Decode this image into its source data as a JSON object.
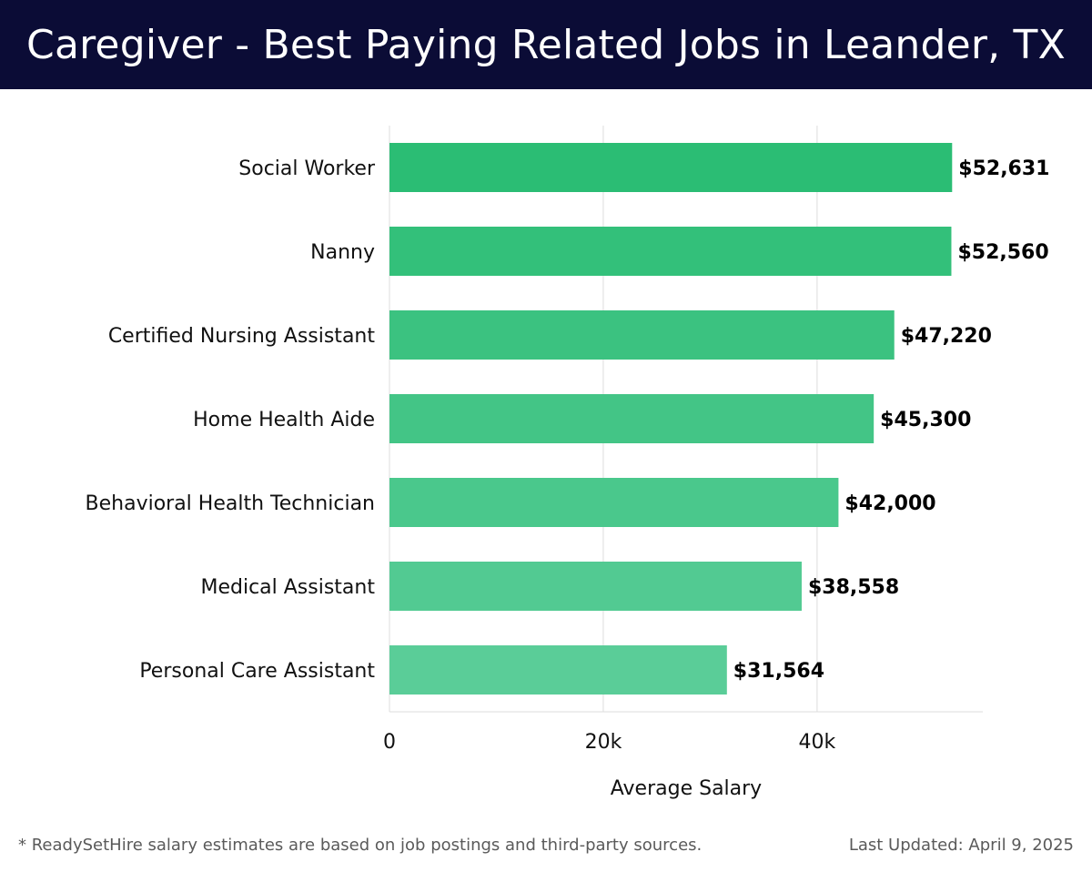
{
  "header": {
    "title": "Caregiver - Best Paying Related Jobs in Leander, TX"
  },
  "footer": {
    "note": "* ReadySetHire salary estimates are based on job postings and third-party sources.",
    "updated": "Last Updated: April 9, 2025"
  },
  "colors": {
    "header_bg": "#0b0c36",
    "bar_top": "#2bbd74",
    "bar_bottom": "#5acd98",
    "grid": "#dddddd",
    "label_text": "#111111",
    "value_text": "#000000"
  },
  "chart_data": {
    "type": "bar",
    "orientation": "horizontal",
    "title": "Caregiver - Best Paying Related Jobs in Leander, TX",
    "categories": [
      "Social Worker",
      "Nanny",
      "Certified Nursing Assistant",
      "Home Health Aide",
      "Behavioral Health Technician",
      "Medical Assistant",
      "Personal Care Assistant"
    ],
    "values": [
      52631,
      52560,
      47220,
      45300,
      42000,
      38558,
      31564
    ],
    "value_labels": [
      "$52,631",
      "$52,560",
      "$47,220",
      "$45,300",
      "$42,000",
      "$38,558",
      "$31,564"
    ],
    "xlabel": "Average Salary",
    "ylabel": "",
    "xlim": [
      0,
      55500
    ],
    "xticks": [
      0,
      20000,
      40000
    ],
    "xtick_labels": [
      "0",
      "20k",
      "40k"
    ],
    "grid": true,
    "legend": "none"
  }
}
